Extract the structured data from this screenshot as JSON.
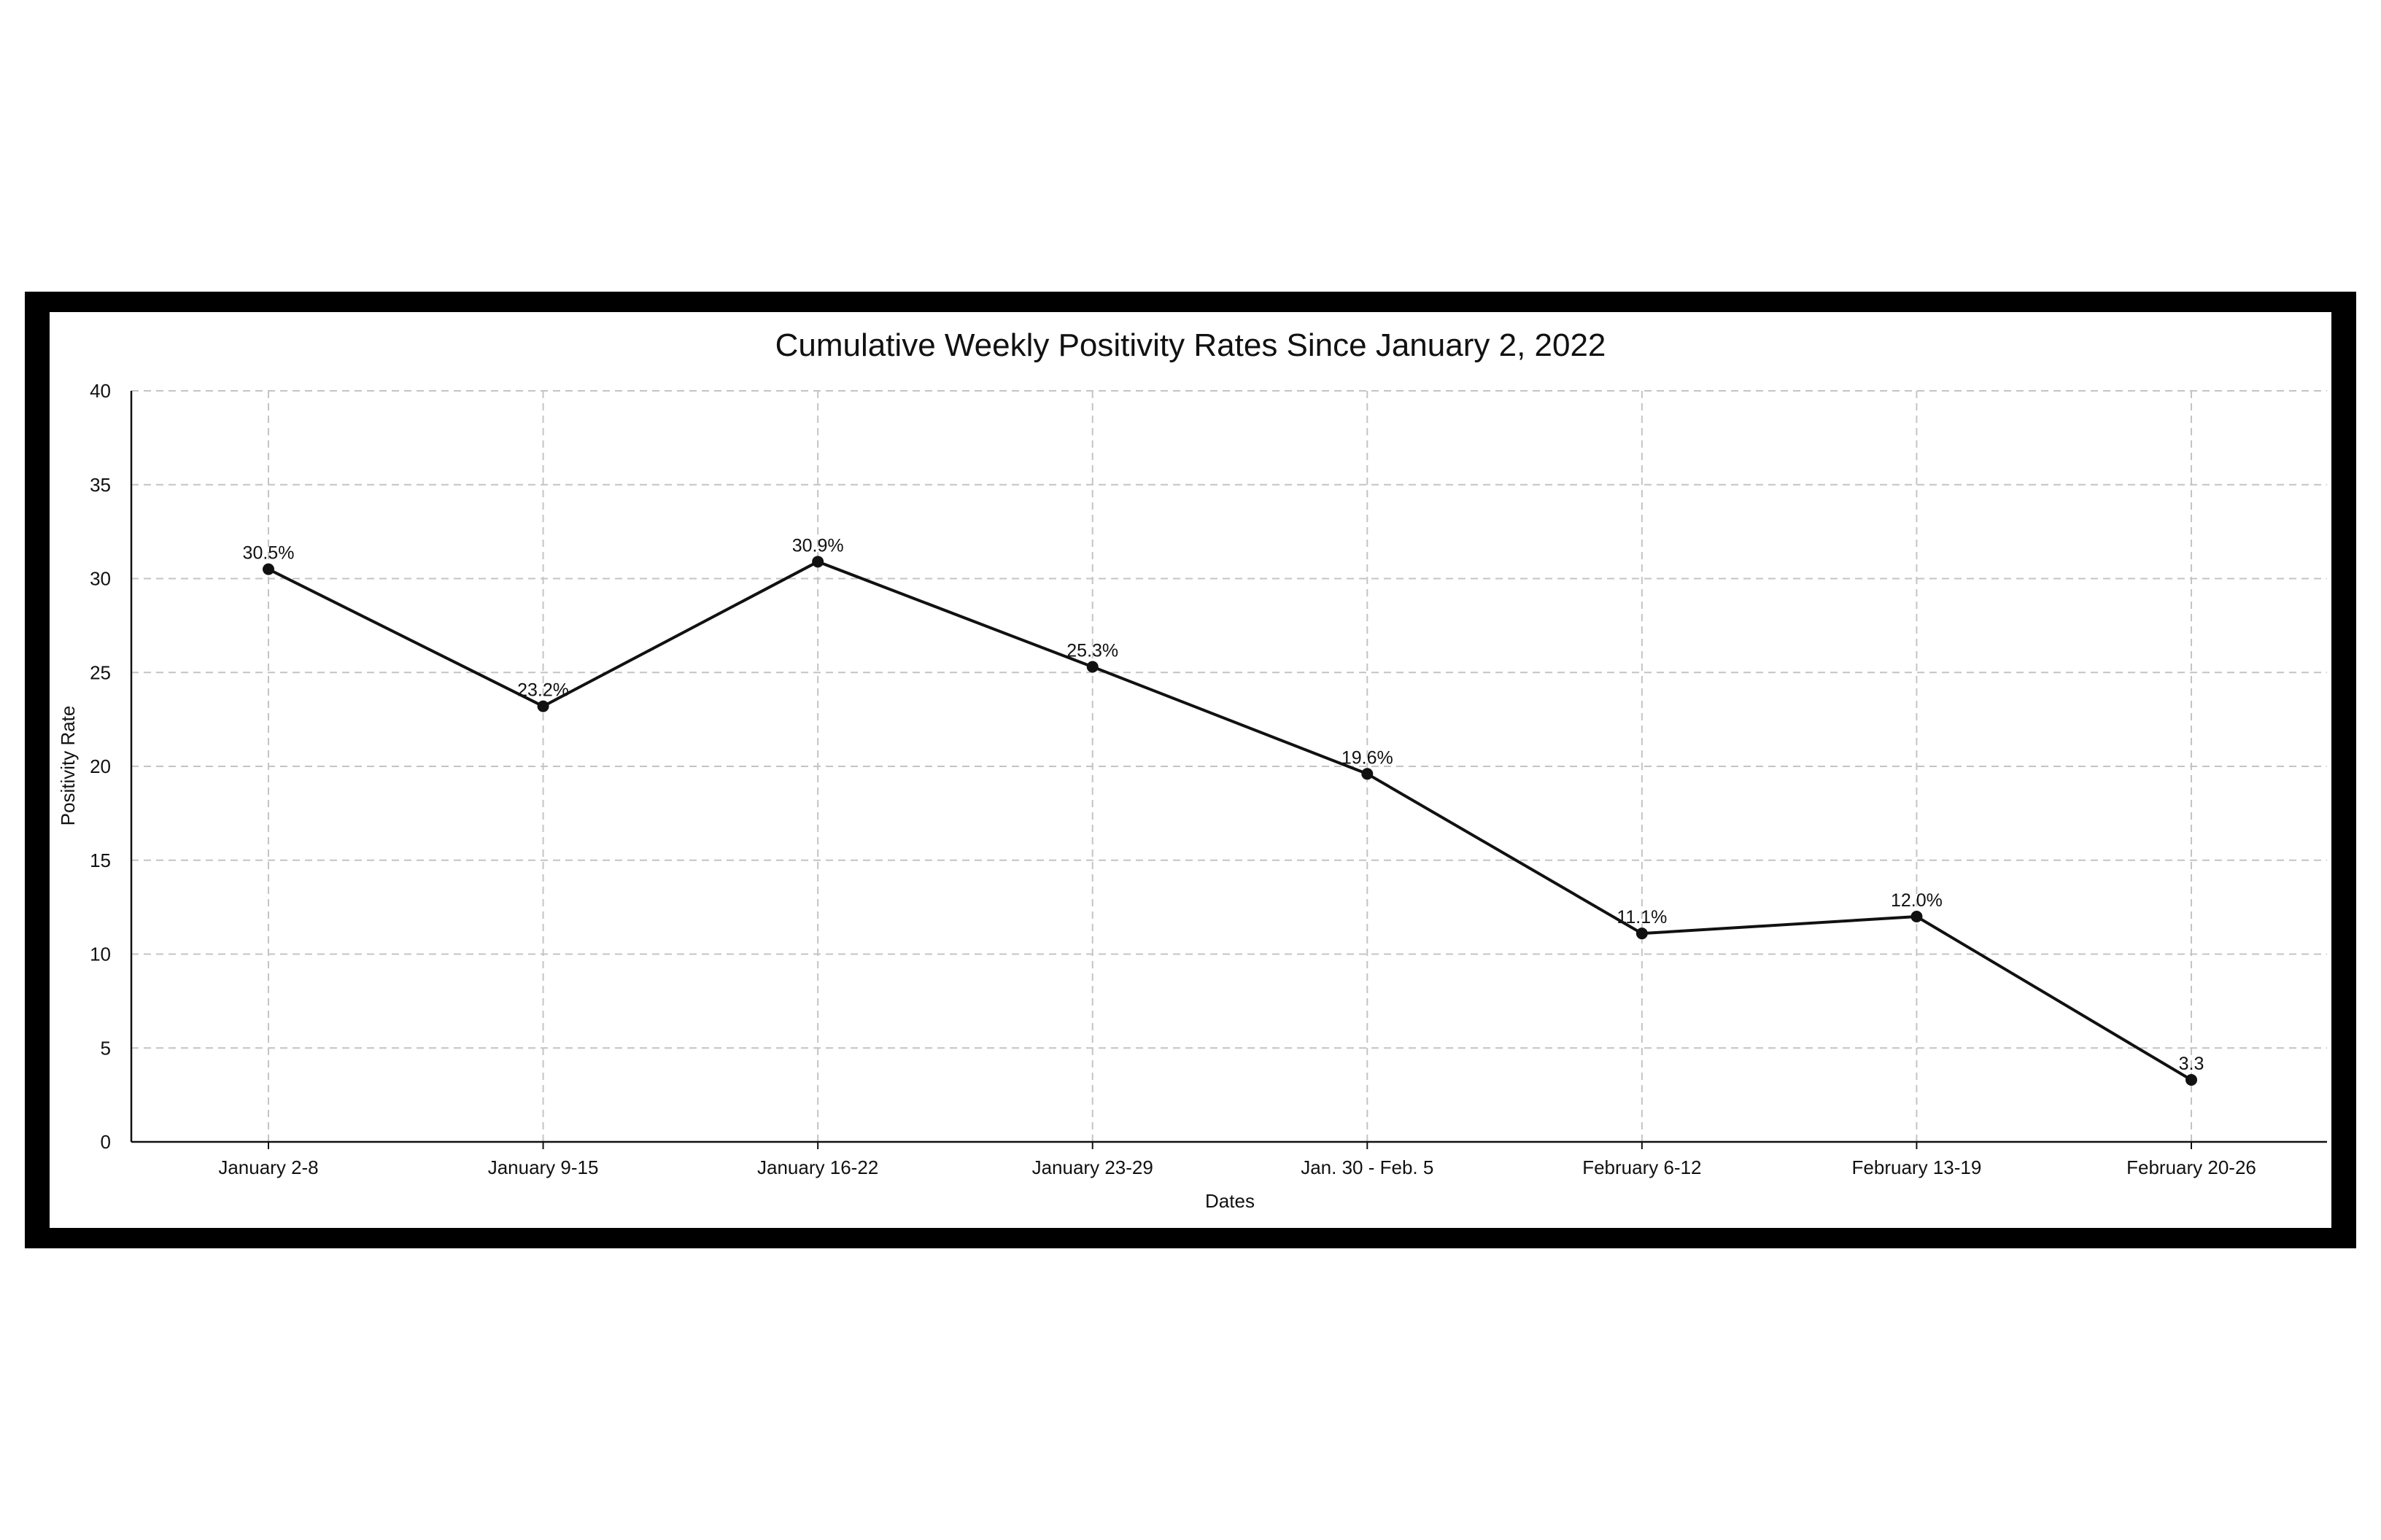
{
  "chart_data": {
    "type": "line",
    "title": "Cumulative Weekly Positivity Rates Since January 2, 2022",
    "xlabel": "Dates",
    "ylabel": "Positivity Rate",
    "ylim": [
      0,
      40
    ],
    "yticks": [
      "0",
      "5",
      "10",
      "15",
      "20",
      "25",
      "30",
      "35",
      "40"
    ],
    "grid": true,
    "categories": [
      "January 2-8",
      "January 9-15",
      "January 16-22",
      "January 23-29",
      "Jan. 30 - Feb. 5",
      "February 6-12",
      "February 13-19",
      "February 20-26"
    ],
    "series": [
      {
        "values": [
          30.5,
          23.2,
          30.9,
          25.3,
          19.6,
          11.1,
          12.0,
          3.3
        ],
        "labels": [
          "30.5%",
          "23.2%",
          "30.9%",
          "25.3%",
          "19.6%",
          "11.1%",
          "12.0%",
          "3.3"
        ]
      }
    ],
    "colors": {
      "line": "#111111",
      "grid": "#c4c4c4",
      "frame": "#000000"
    }
  }
}
